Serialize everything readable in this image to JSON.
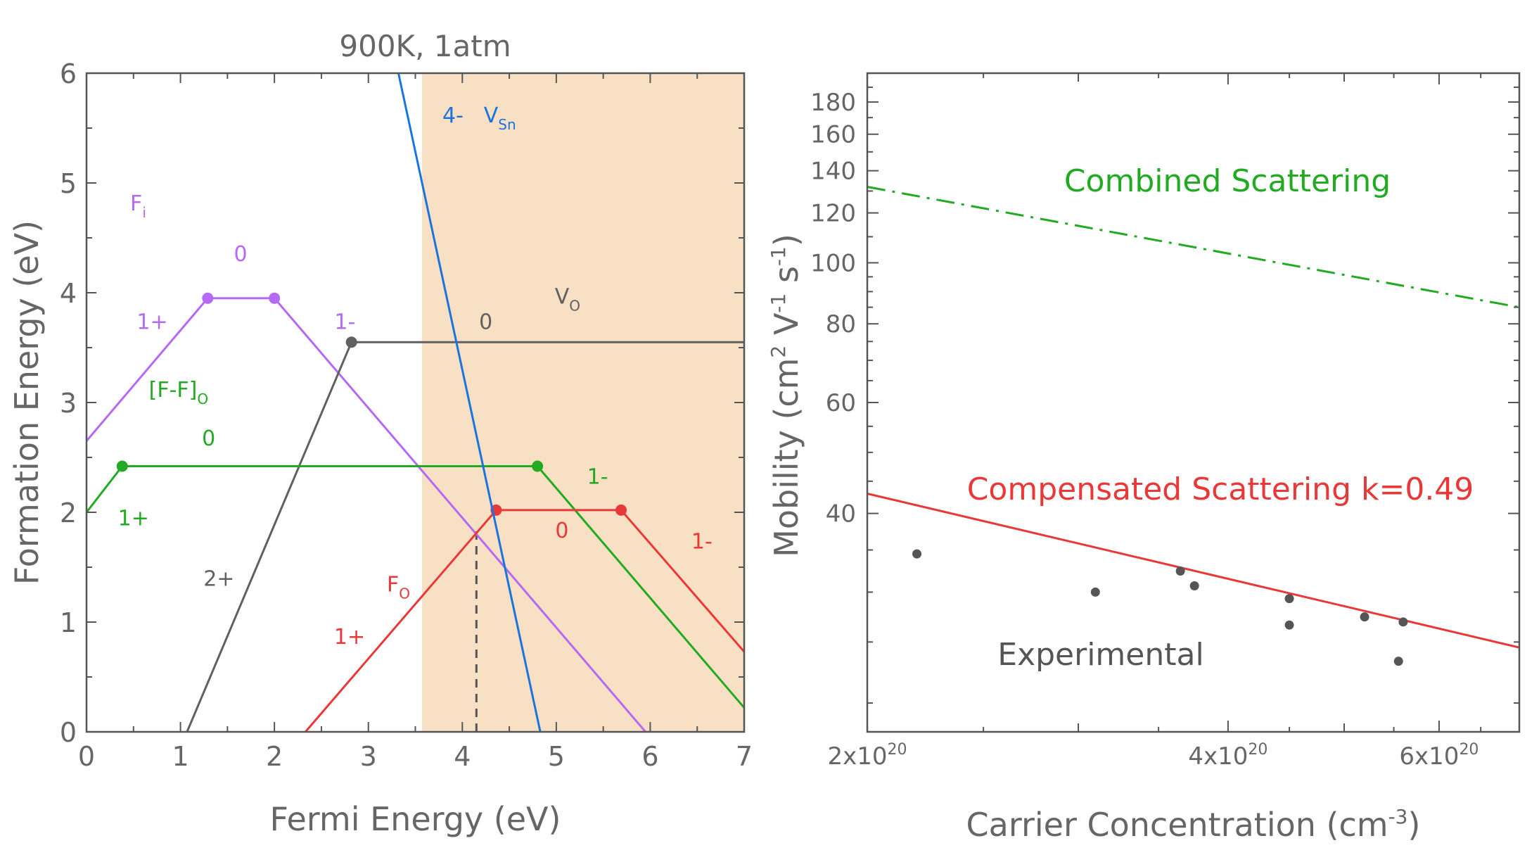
{
  "chart_data": [
    {
      "type": "line",
      "title": "900K, 1atm",
      "xlabel": "Fermi Energy (eV)",
      "ylabel": "Formation Energy (eV)",
      "xlim": [
        0,
        7
      ],
      "ylim": [
        0,
        6
      ],
      "xticks": [
        "0",
        "1",
        "2",
        "3",
        "4",
        "5",
        "6",
        "7"
      ],
      "yticks": [
        "0",
        "1",
        "2",
        "3",
        "4",
        "5",
        "6"
      ],
      "shaded_region": {
        "x": [
          3.57,
          7
        ],
        "color": "#f8e0c4"
      },
      "dashed_marker": {
        "x": 4.15,
        "y": [
          0,
          1.83
        ]
      },
      "series": [
        {
          "name": "F",
          "subscript": "i",
          "color": "#b46af5",
          "x": [
            0,
            1.29,
            2.0,
            5.95
          ],
          "y": [
            2.65,
            3.95,
            3.95,
            0
          ],
          "points": [
            [
              1.29,
              3.95
            ],
            [
              2.0,
              3.95
            ]
          ],
          "charge_labels": [
            {
              "text": "1+",
              "x": 0.7,
              "y": 3.67
            },
            {
              "text": "0",
              "x": 1.64,
              "y": 4.29
            },
            {
              "text": "1-",
              "x": 2.75,
              "y": 3.67
            }
          ]
        },
        {
          "name": "V",
          "subscript": "O",
          "color": "#606060",
          "x": [
            1.07,
            2.82,
            7
          ],
          "y": [
            0,
            3.55,
            3.55
          ],
          "points": [
            [
              2.82,
              3.55
            ]
          ],
          "charge_labels": [
            {
              "text": "2+",
              "x": 1.41,
              "y": 1.33
            },
            {
              "text": "0",
              "x": 4.25,
              "y": 3.67
            }
          ]
        },
        {
          "name": "[F-F]",
          "subscript": "O",
          "color": "#22aa22",
          "x": [
            0,
            0.38,
            4.8,
            7
          ],
          "y": [
            2.0,
            2.42,
            2.42,
            0.22
          ],
          "points": [
            [
              0.38,
              2.42
            ],
            [
              4.8,
              2.42
            ]
          ],
          "charge_labels": [
            {
              "text": "1+",
              "x": 0.5,
              "y": 1.88
            },
            {
              "text": "0",
              "x": 1.3,
              "y": 2.61
            },
            {
              "text": "1-",
              "x": 5.44,
              "y": 2.26
            }
          ]
        },
        {
          "name": "F",
          "subscript": "O",
          "color": "#e83838",
          "x": [
            2.33,
            4.36,
            5.69,
            7
          ],
          "y": [
            0,
            2.02,
            2.02,
            0.73
          ],
          "points": [
            [
              4.36,
              2.02
            ],
            [
              5.69,
              2.02
            ]
          ],
          "charge_labels": [
            {
              "text": "1+",
              "x": 2.8,
              "y": 0.8
            },
            {
              "text": "0",
              "x": 5.06,
              "y": 1.77
            },
            {
              "text": "1-",
              "x": 6.55,
              "y": 1.67
            }
          ]
        },
        {
          "name": "V",
          "subscript": "Sn",
          "color": "#1a74e0",
          "x": [
            3.32,
            4.83
          ],
          "y": [
            6.0,
            0
          ],
          "points": [],
          "charge_labels": [
            {
              "text": "4-",
              "x": 3.9,
              "y": 5.55
            }
          ]
        }
      ]
    },
    {
      "type": "line",
      "xlabel": "Carrier Concentration (cm",
      "xlabel_sup": "-3",
      "xlabel_end": ")",
      "ylabel": "Mobility (cm",
      "ylabel_sup1": "2",
      "ylabel_mid1": " V",
      "ylabel_sup2": "-1",
      "ylabel_mid2": " s",
      "ylabel_sup3": "-1",
      "ylabel_end": ")",
      "xscale": "log",
      "yscale": "log",
      "xlim": [
        2e+20,
        7e+20
      ],
      "ylim": [
        18,
        200
      ],
      "xticks": [
        {
          "value": 2e+20,
          "base": "2x10",
          "exp": "20"
        },
        {
          "value": 4e+20,
          "base": "4x10",
          "exp": "20"
        },
        {
          "value": 6e+20,
          "base": "6x10",
          "exp": "20"
        }
      ],
      "yticks": [
        40,
        60,
        80,
        100,
        120,
        140,
        160,
        180
      ],
      "series": [
        {
          "name": "Combined Scattering",
          "color": "#22aa22",
          "style": "dashdot",
          "x": [
            2e+20,
            7e+20
          ],
          "y": [
            132,
            85
          ]
        },
        {
          "name": "Compensated Scattering k=0.49",
          "color": "#e83838",
          "style": "solid",
          "x": [
            2e+20,
            7e+20
          ],
          "y": [
            43,
            24.5
          ]
        },
        {
          "name": "Experimental",
          "color": "#555555",
          "style": "markers",
          "x": [
            2.2e+20,
            3.1e+20,
            3.65e+20,
            3.75e+20,
            4.5e+20,
            4.5e+20,
            5.2e+20,
            5.55e+20,
            5.6e+20
          ],
          "y": [
            34.5,
            30.0,
            32.4,
            30.7,
            29.3,
            26.6,
            27.4,
            23.3,
            26.9
          ]
        }
      ]
    }
  ]
}
